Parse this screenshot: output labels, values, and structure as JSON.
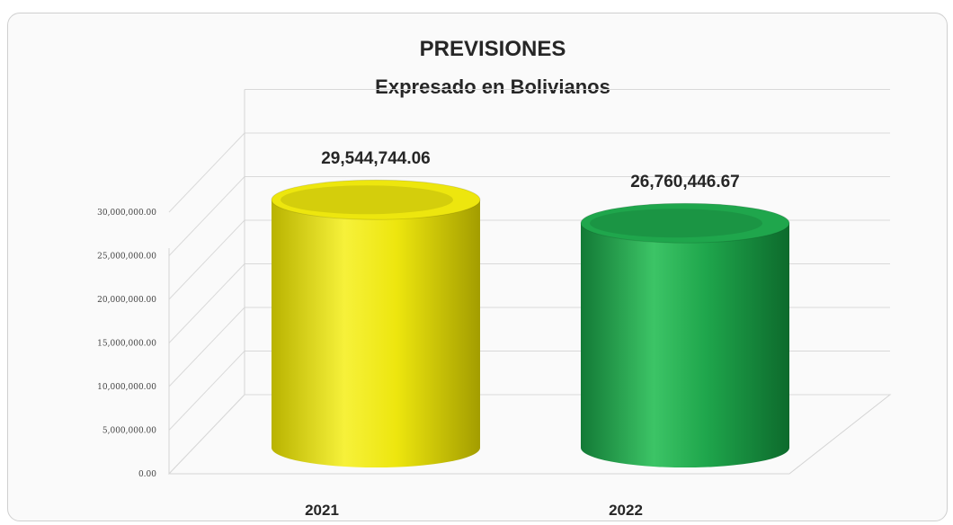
{
  "chart_data": {
    "type": "bar",
    "title": "PREVISIONES",
    "subtitle": "Expresado en Bolivianos",
    "categories": [
      "2021",
      "2022"
    ],
    "values": [
      29544744.06,
      26760446.67
    ],
    "value_labels": [
      "29,544,744.06",
      "26,760,446.67"
    ],
    "bar_colors": [
      "#ede60e",
      "#1fa64c"
    ],
    "bar_shape": "3d-cylinder",
    "yticks": [
      0,
      5000000,
      10000000,
      15000000,
      20000000,
      25000000,
      30000000
    ],
    "ytick_labels": [
      "0.00",
      "5,000,000.00",
      "10,000,000.00",
      "15,000,000.00",
      "20,000,000.00",
      "25,000,000.00",
      "30,000,000.00"
    ],
    "ylim": [
      0,
      30000000
    ],
    "grid": true,
    "legend": "none",
    "xlabel": "",
    "ylabel": ""
  }
}
